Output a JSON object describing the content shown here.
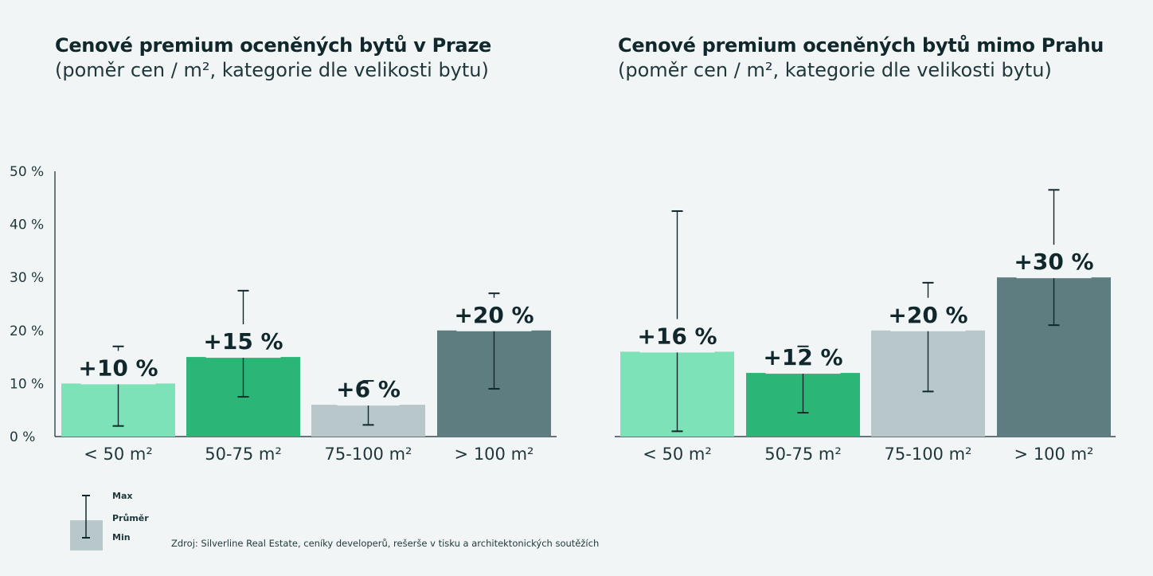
{
  "colors": {
    "background": "#f1f5f6",
    "cat1": "#7de2b7",
    "cat2": "#2bb677",
    "cat3": "#b7c7ca",
    "cat4": "#5e7d81",
    "text": "#10282c"
  },
  "title_left": {
    "bold": "Cenové premium oceněných bytů v Praze",
    "sub": "(poměr cen / m², kategorie dle velikosti bytu)"
  },
  "title_right": {
    "bold": "Cenové premium oceněných bytů mimo Prahu",
    "sub": "(poměr cen / m², kategorie dle velikosti bytu)"
  },
  "legend": {
    "max": "Max",
    "avg": "Průměr",
    "min": "Min"
  },
  "source": "Zdroj: Silverline Real Estate, ceníky developerů, rešerše v tisku a architektonických soutěžích",
  "chart_data": [
    {
      "type": "bar",
      "title": "Cenové premium oceněných bytů v Praze",
      "subtitle": "(poměr cen / m², kategorie dle velikosti bytu)",
      "categories": [
        "< 50 m²",
        "50-75 m²",
        "75-100 m²",
        "> 100 m²"
      ],
      "values": [
        10,
        15,
        6,
        20
      ],
      "min": [
        2,
        7.5,
        2.2,
        9
      ],
      "max": [
        17,
        27.5,
        10.5,
        27
      ],
      "labels": [
        "+10 %",
        "+15 %",
        "+6 %",
        "+20 %"
      ],
      "ylim": [
        0,
        50
      ],
      "yticks": [
        0,
        10,
        20,
        30,
        40,
        50
      ],
      "ytick_labels": [
        "0 %",
        "10 %",
        "20 %",
        "30 %",
        "40 %",
        "50 %"
      ],
      "show_y_axis": true
    },
    {
      "type": "bar",
      "title": "Cenové premium oceněných bytů mimo Prahu",
      "subtitle": "(poměr cen / m², kategorie dle velikosti bytu)",
      "categories": [
        "< 50 m²",
        "50-75 m²",
        "75-100 m²",
        "> 100 m²"
      ],
      "values": [
        16,
        12,
        20,
        30
      ],
      "min": [
        1,
        4.5,
        8.5,
        21
      ],
      "max": [
        42.5,
        17,
        29,
        46.5
      ],
      "labels": [
        "+16 %",
        "+12 %",
        "+20 %",
        "+30 %"
      ],
      "ylim": [
        0,
        50
      ],
      "show_y_axis": false
    }
  ]
}
